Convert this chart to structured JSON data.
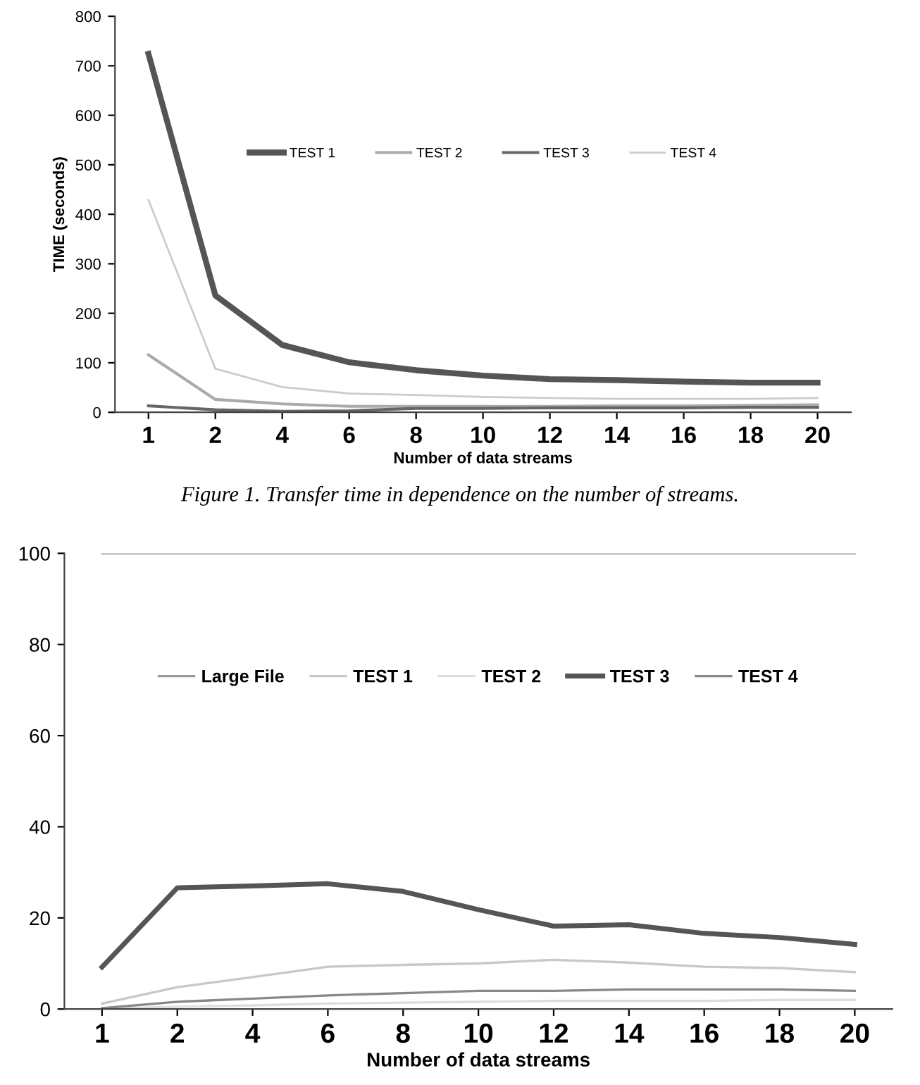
{
  "chart_data": [
    {
      "type": "line",
      "xlabel": "Number of data streams",
      "ylabel": "TIME (seconds)",
      "categories": [
        "1",
        "2",
        "4",
        "6",
        "8",
        "10",
        "12",
        "14",
        "16",
        "18",
        "20"
      ],
      "series": [
        {
          "name": "TEST 1",
          "color": "#555555",
          "values": [
            724,
            236,
            136,
            101,
            85,
            74,
            67,
            65,
            62,
            60,
            60
          ]
        },
        {
          "name": "TEST 2",
          "color": "#aaaaaa",
          "values": [
            116,
            26,
            17,
            12,
            12,
            12,
            12,
            13,
            13,
            14,
            15
          ]
        },
        {
          "name": "TEST 3",
          "color": "#666666",
          "values": [
            13,
            5,
            2,
            3,
            8,
            8,
            9,
            9,
            9,
            10,
            10
          ]
        },
        {
          "name": "TEST 4",
          "color": "#cccccc",
          "values": [
            429,
            88,
            51,
            38,
            35,
            31,
            29,
            27,
            27,
            27,
            29
          ]
        }
      ],
      "ylim": [
        0,
        800
      ],
      "yticks": [
        0,
        100,
        200,
        300,
        400,
        500,
        600,
        700,
        800
      ],
      "grid": false,
      "legend": "top",
      "marker": "none",
      "line_style": "solid",
      "annotations": [
        "Figure 1. Transfer time in dependence on the number of streams."
      ]
    },
    {
      "type": "line",
      "xlabel": "Number of data streams",
      "categories": [
        "1",
        "2",
        "4",
        "6",
        "8",
        "10",
        "12",
        "14",
        "16",
        "18",
        "20"
      ],
      "series": [
        {
          "name": "Large File",
          "color": "#999999",
          "values": [
            100,
            100,
            100,
            100,
            100,
            100,
            100,
            100,
            100,
            100,
            100
          ]
        },
        {
          "name": "TEST 1",
          "color": "#c8c8c8",
          "values": [
            1.2,
            4.8,
            7,
            9.3,
            9.7,
            10,
            10.8,
            10.2,
            9.3,
            9,
            8.1
          ]
        },
        {
          "name": "TEST 2",
          "color": "#dddddd",
          "values": [
            0.1,
            0.5,
            0.8,
            1.2,
            1.4,
            1.6,
            1.8,
            1.8,
            1.8,
            2,
            2
          ]
        },
        {
          "name": "TEST 3",
          "color": "#555555",
          "values": [
            9.2,
            26.6,
            27,
            27.5,
            25.8,
            21.8,
            18.2,
            18.5,
            16.6,
            15.7,
            14.2
          ]
        },
        {
          "name": "TEST 4",
          "color": "#888888",
          "values": [
            0.2,
            1.6,
            2.3,
            3,
            3.5,
            4,
            4,
            4.3,
            4.3,
            4.3,
            4
          ]
        }
      ],
      "ylim": [
        0,
        100
      ],
      "yticks": [
        0,
        20,
        40,
        60,
        80,
        100
      ],
      "grid": false,
      "legend": "top",
      "marker": "none",
      "line_style": "solid"
    }
  ]
}
